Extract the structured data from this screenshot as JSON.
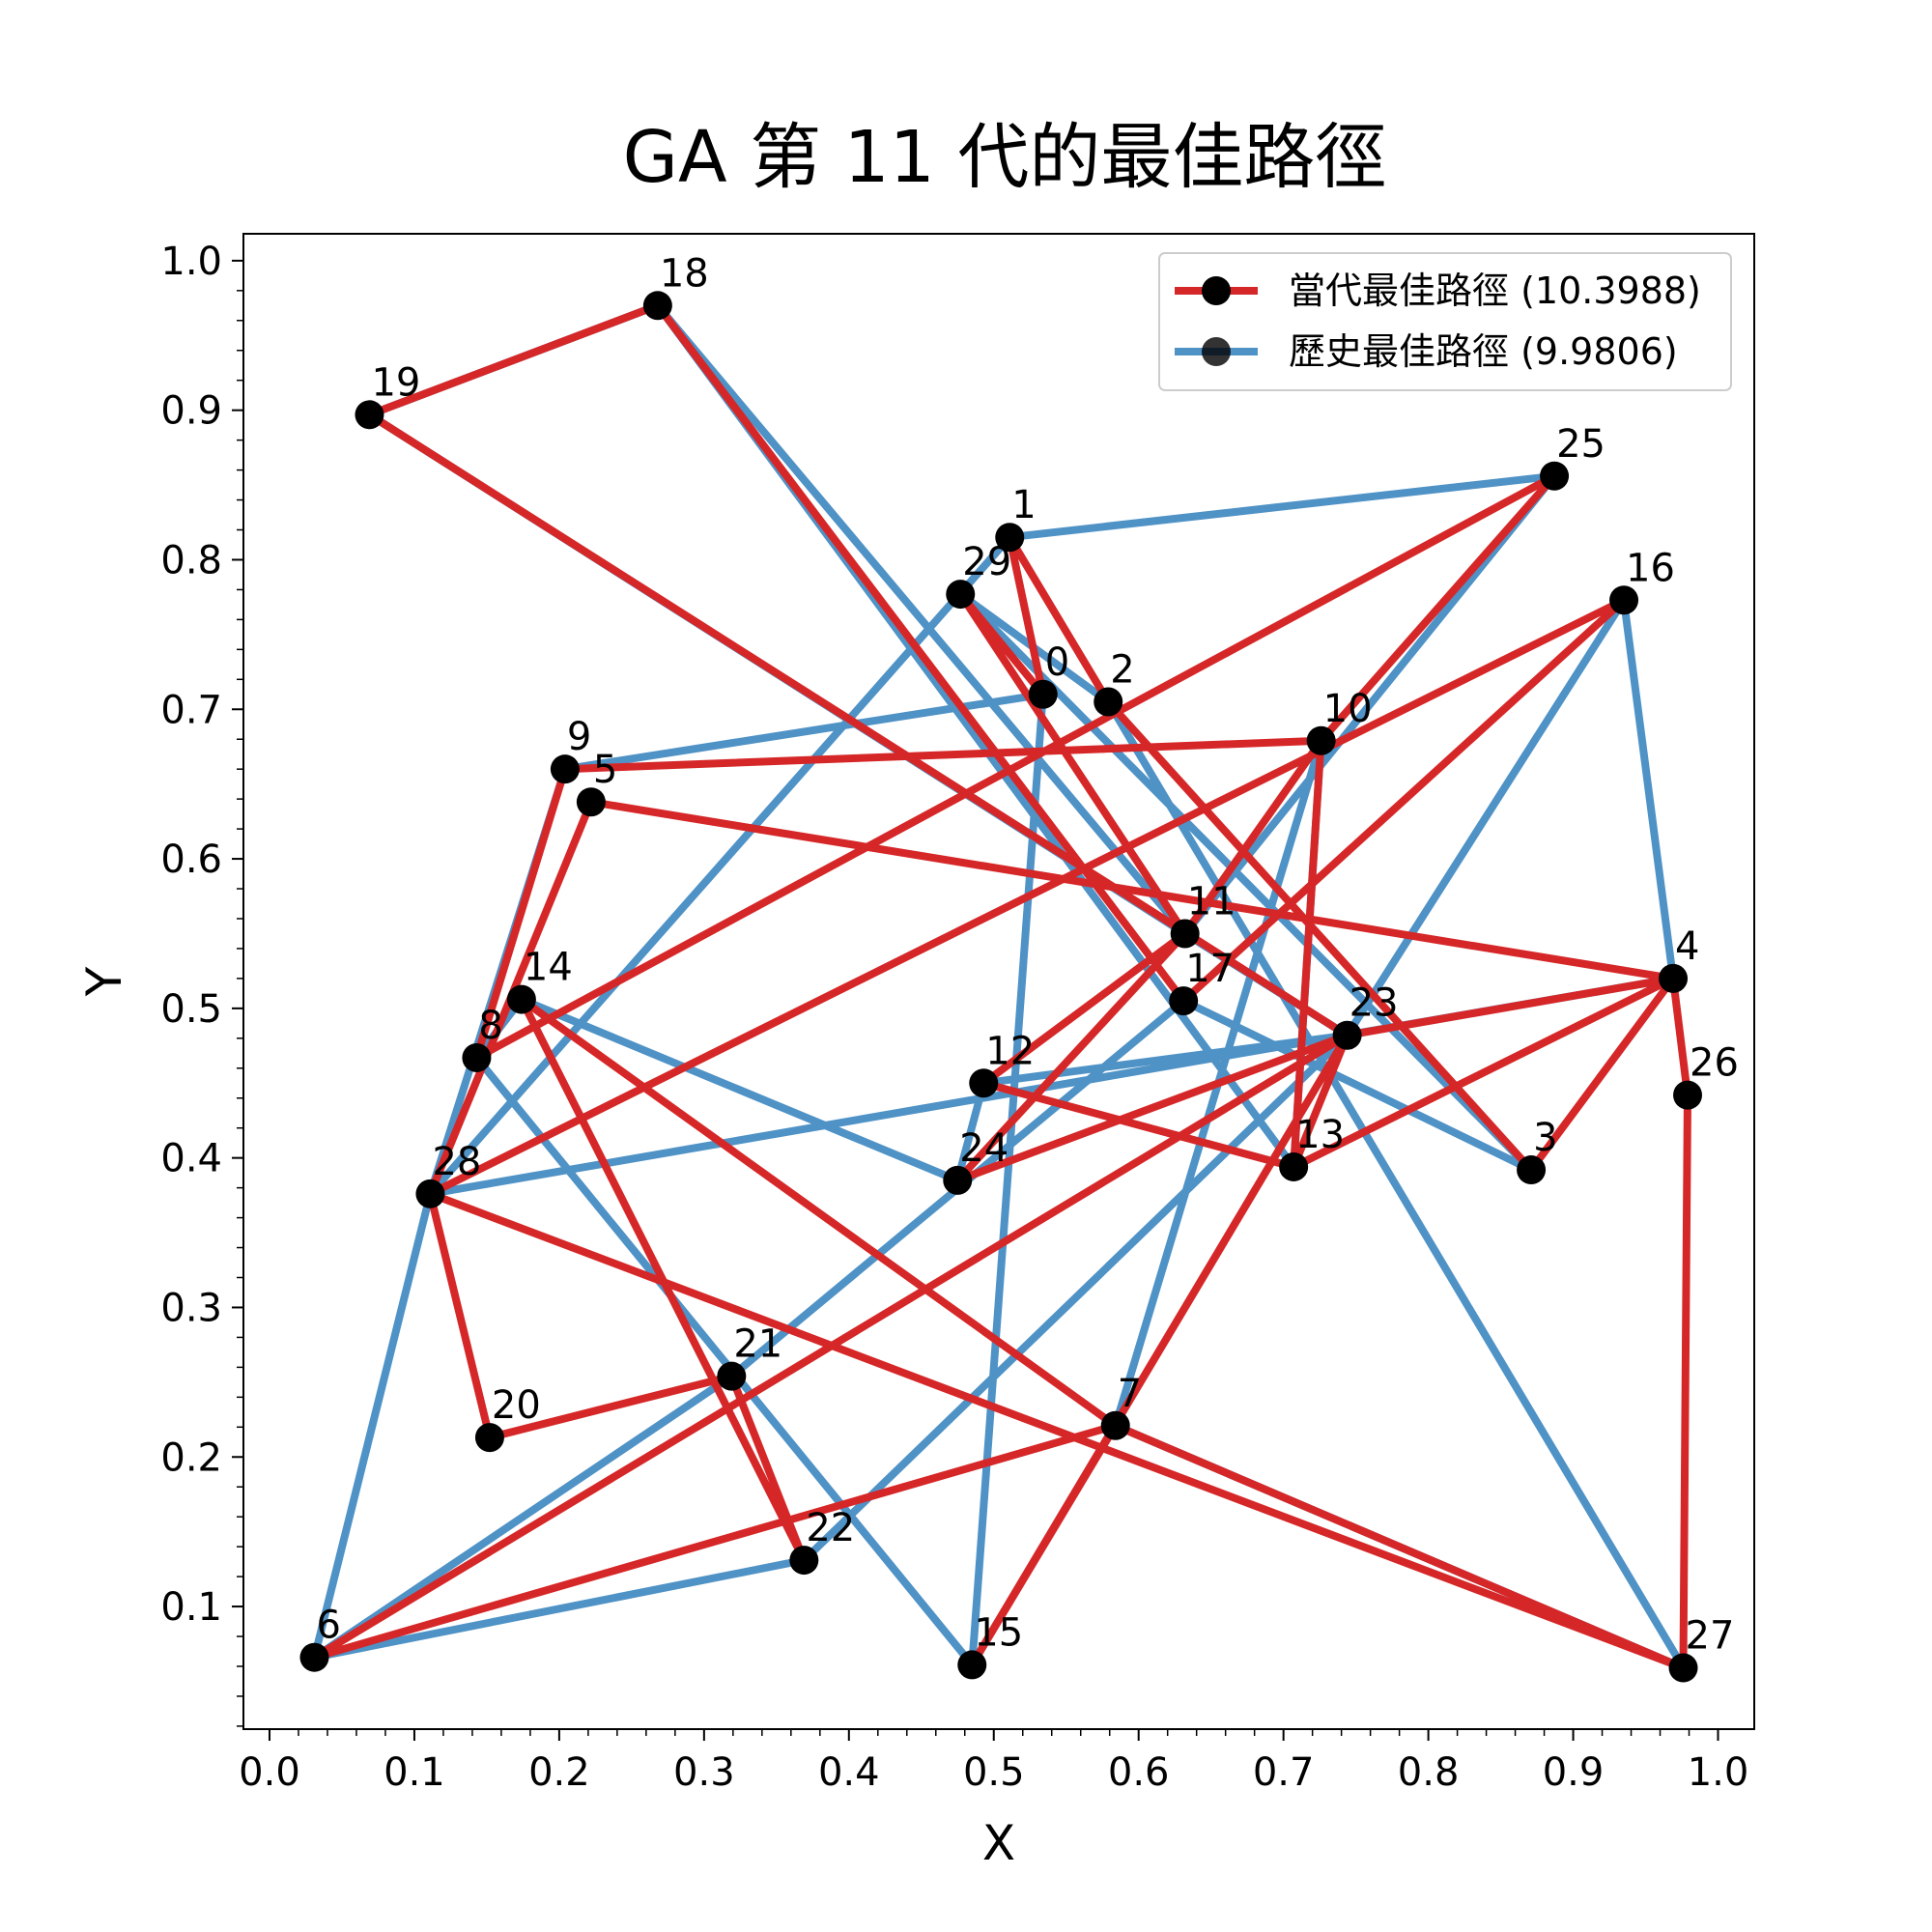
{
  "chart_data": {
    "type": "line",
    "title": "GA 第 11 代的最佳路徑",
    "xlabel": "X",
    "ylabel": "Y",
    "xlim": [
      -0.018,
      1.025
    ],
    "ylim": [
      0.018,
      1.018
    ],
    "xticks": [
      "0.0",
      "0.1",
      "0.2",
      "0.3",
      "0.4",
      "0.5",
      "0.6",
      "0.7",
      "0.8",
      "0.9",
      "1.0"
    ],
    "yticks": [
      "0.1",
      "0.2",
      "0.3",
      "0.4",
      "0.5",
      "0.6",
      "0.7",
      "0.8",
      "0.9",
      "1.0"
    ],
    "legend_position": "upper-right",
    "colors": {
      "current": "#d62728",
      "history": "#4f92c6",
      "node": "#000000"
    },
    "cities": [
      {
        "id": "0",
        "x": 0.534,
        "y": 0.71
      },
      {
        "id": "1",
        "x": 0.511,
        "y": 0.815
      },
      {
        "id": "2",
        "x": 0.579,
        "y": 0.705
      },
      {
        "id": "3",
        "x": 0.871,
        "y": 0.392
      },
      {
        "id": "4",
        "x": 0.969,
        "y": 0.52
      },
      {
        "id": "5",
        "x": 0.222,
        "y": 0.638
      },
      {
        "id": "6",
        "x": 0.031,
        "y": 0.066
      },
      {
        "id": "7",
        "x": 0.584,
        "y": 0.221
      },
      {
        "id": "8",
        "x": 0.143,
        "y": 0.467
      },
      {
        "id": "9",
        "x": 0.204,
        "y": 0.66
      },
      {
        "id": "10",
        "x": 0.726,
        "y": 0.679
      },
      {
        "id": "11",
        "x": 0.632,
        "y": 0.55
      },
      {
        "id": "12",
        "x": 0.493,
        "y": 0.45
      },
      {
        "id": "13",
        "x": 0.707,
        "y": 0.394
      },
      {
        "id": "14",
        "x": 0.174,
        "y": 0.506
      },
      {
        "id": "15",
        "x": 0.485,
        "y": 0.061
      },
      {
        "id": "16",
        "x": 0.935,
        "y": 0.773
      },
      {
        "id": "17",
        "x": 0.631,
        "y": 0.505
      },
      {
        "id": "18",
        "x": 0.268,
        "y": 0.97
      },
      {
        "id": "19",
        "x": 0.069,
        "y": 0.897
      },
      {
        "id": "20",
        "x": 0.152,
        "y": 0.213
      },
      {
        "id": "21",
        "x": 0.319,
        "y": 0.254
      },
      {
        "id": "22",
        "x": 0.369,
        "y": 0.131
      },
      {
        "id": "23",
        "x": 0.744,
        "y": 0.482
      },
      {
        "id": "24",
        "x": 0.475,
        "y": 0.385
      },
      {
        "id": "25",
        "x": 0.887,
        "y": 0.856
      },
      {
        "id": "26",
        "x": 0.979,
        "y": 0.442
      },
      {
        "id": "27",
        "x": 0.976,
        "y": 0.059
      },
      {
        "id": "28",
        "x": 0.111,
        "y": 0.376
      },
      {
        "id": "29",
        "x": 0.477,
        "y": 0.777
      }
    ],
    "series": [
      {
        "name": "歷史最佳路徑 (9.9806)",
        "color": "#4f92c6",
        "route": [
          18,
          11,
          23,
          12,
          24,
          14,
          8,
          15,
          0,
          9,
          28,
          4,
          16,
          23,
          22,
          6,
          28,
          1,
          25,
          11,
          19,
          18,
          13,
          10,
          7,
          27,
          2,
          29,
          3,
          17,
          21,
          6
        ]
      },
      {
        "name": "當代最佳路徑 (10.3988)",
        "color": "#d62728",
        "route": [
          19,
          18,
          17,
          16,
          28,
          20,
          21,
          22,
          14,
          7,
          6,
          23,
          24,
          11,
          29,
          0,
          1,
          2,
          3,
          4,
          26,
          27,
          28,
          5,
          4,
          13,
          12,
          11,
          10,
          9,
          8,
          25,
          10,
          13,
          23,
          15,
          7,
          27,
          26,
          4,
          23,
          19
        ]
      }
    ]
  }
}
